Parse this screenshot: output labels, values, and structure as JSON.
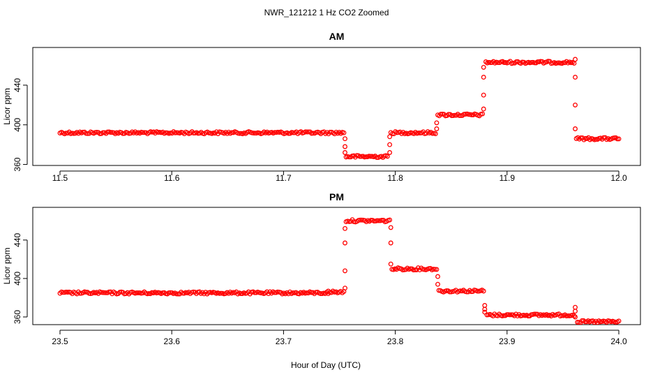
{
  "title": "NWR_121212  1 Hz CO2 Zoomed",
  "xlabel": "Hour of Day (UTC)",
  "colors": {
    "points": "#ff0000",
    "axis": "#000000"
  },
  "chart_data": [
    {
      "type": "scatter",
      "title": "AM",
      "ylabel": "Licor ppm",
      "xlim": [
        11.5,
        12.0
      ],
      "ylim": [
        359,
        478
      ],
      "x_ticks": [
        11.5,
        11.6,
        11.7,
        11.8,
        11.9,
        12.0
      ],
      "x_tick_labels": [
        "11.5",
        "11.6",
        "11.7",
        "11.8",
        "11.9",
        "12.0"
      ],
      "y_ticks": [
        360,
        400,
        440
      ],
      "y_tick_labels": [
        "360",
        "400",
        "440"
      ],
      "segments": [
        {
          "x0": 11.5,
          "x1": 11.754,
          "y": 392
        },
        {
          "x0": 11.756,
          "x1": 11.793,
          "y": 368
        },
        {
          "x0": 11.796,
          "x1": 11.836,
          "y": 392
        },
        {
          "x0": 11.838,
          "x1": 11.878,
          "y": 410
        },
        {
          "x0": 11.881,
          "x1": 11.96,
          "y": 463
        },
        {
          "x0": 11.962,
          "x1": 12.0,
          "y": 386
        }
      ],
      "transitions": [
        {
          "x": 11.755,
          "y": [
            386,
            378,
            372
          ]
        },
        {
          "x": 11.795,
          "y": [
            372,
            380,
            388
          ]
        },
        {
          "x": 11.837,
          "y": [
            396,
            402
          ]
        },
        {
          "x": 11.879,
          "y": [
            416,
            430,
            448,
            458
          ]
        },
        {
          "x": 11.961,
          "y": [
            466,
            448,
            420,
            396
          ]
        }
      ]
    },
    {
      "type": "scatter",
      "title": "PM",
      "ylabel": "Licor ppm",
      "xlim": [
        23.5,
        24.0
      ],
      "ylim": [
        352,
        474
      ],
      "x_ticks": [
        23.5,
        23.6,
        23.7,
        23.8,
        23.9,
        24.0
      ],
      "x_tick_labels": [
        "23.5",
        "23.6",
        "23.7",
        "23.8",
        "23.9",
        "24.0"
      ],
      "y_ticks": [
        360,
        400,
        440
      ],
      "y_tick_labels": [
        "360",
        "400",
        "440"
      ],
      "segments": [
        {
          "x0": 23.5,
          "x1": 23.74,
          "y": 385
        },
        {
          "x0": 23.74,
          "x1": 23.754,
          "y": 386
        },
        {
          "x0": 23.756,
          "x1": 23.795,
          "y": 460
        },
        {
          "x0": 23.797,
          "x1": 23.837,
          "y": 410
        },
        {
          "x0": 23.839,
          "x1": 23.879,
          "y": 387
        },
        {
          "x0": 23.882,
          "x1": 23.96,
          "y": 362
        },
        {
          "x0": 23.963,
          "x1": 24.0,
          "y": 355
        }
      ],
      "transitions": [
        {
          "x": 23.755,
          "y": [
            390,
            408,
            437,
            452
          ]
        },
        {
          "x": 23.796,
          "y": [
            453,
            437,
            415
          ]
        },
        {
          "x": 23.838,
          "y": [
            402,
            394
          ]
        },
        {
          "x": 23.88,
          "y": [
            372,
            368,
            365
          ]
        },
        {
          "x": 23.961,
          "y": [
            370,
            366,
            360
          ]
        }
      ]
    }
  ]
}
